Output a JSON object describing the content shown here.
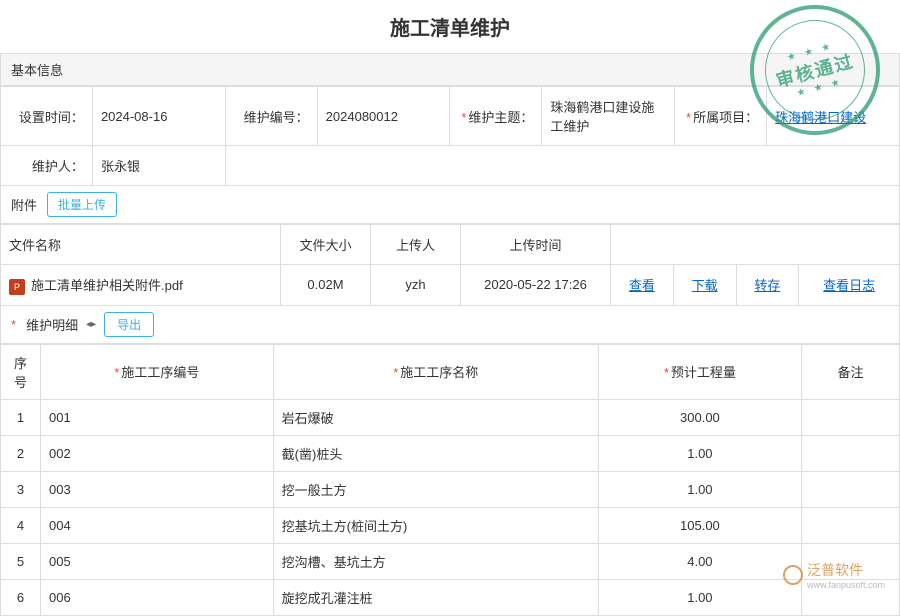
{
  "title": "施工清单维护",
  "stamp": {
    "text": "审核通过",
    "stars": "★ ★ ★"
  },
  "basic": {
    "header": "基本信息",
    "fields": {
      "set_time_label": "设置时间：",
      "set_time": "2024-08-16",
      "maint_no_label": "维护编号：",
      "maint_no": "2024080012",
      "topic_label": "维护主题：",
      "topic": "珠海鹤港口建设施工维护",
      "project_label": "所属项目：",
      "project": "珠海鹤港口建设",
      "person_label": "维护人：",
      "person": "张永银"
    }
  },
  "attach": {
    "label": "附件",
    "upload_btn": "批量上传",
    "cols": {
      "name": "文件名称",
      "size": "文件大小",
      "uploader": "上传人",
      "time": "上传时间"
    },
    "row": {
      "icon": "P",
      "name": "施工清单维护相关附件.pdf",
      "size": "0.02M",
      "uploader": "yzh",
      "time": "2020-05-22 17:26",
      "actions": {
        "view": "查看",
        "download": "下载",
        "transfer": "转存",
        "log": "查看日志"
      }
    }
  },
  "detail": {
    "label": "维护明细",
    "export_btn": "导出",
    "cols": {
      "seq": "序号",
      "code": "施工工序编号",
      "name": "施工工序名称",
      "qty": "预计工程量",
      "remark": "备注"
    },
    "rows": [
      {
        "seq": "1",
        "code": "001",
        "name": "岩石爆破",
        "qty": "300.00",
        "remark": ""
      },
      {
        "seq": "2",
        "code": "002",
        "name": "截(凿)桩头",
        "qty": "1.00",
        "remark": ""
      },
      {
        "seq": "3",
        "code": "003",
        "name": "挖一般土方",
        "qty": "1.00",
        "remark": ""
      },
      {
        "seq": "4",
        "code": "004",
        "name": "挖基坑土方(桩间土方)",
        "qty": "105.00",
        "remark": ""
      },
      {
        "seq": "5",
        "code": "005",
        "name": "挖沟槽、基坑土方",
        "qty": "4.00",
        "remark": ""
      },
      {
        "seq": "6",
        "code": "006",
        "name": "旋挖成孔灌注桩",
        "qty": "1.00",
        "remark": ""
      }
    ]
  },
  "watermark": {
    "brand": "泛普软件",
    "url": "www.fanpusoft.com"
  }
}
